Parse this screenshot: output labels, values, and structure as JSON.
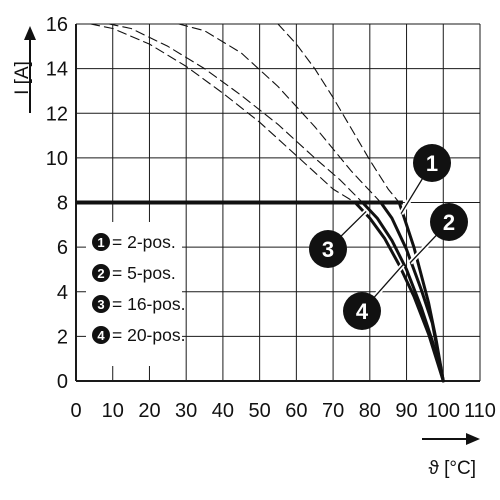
{
  "chart_data": {
    "type": "line",
    "xlabel": "ϑ [°C]",
    "ylabel": "I [A]",
    "xlim": [
      0,
      110
    ],
    "ylim": [
      0,
      16
    ],
    "x_ticks": [
      0,
      10,
      20,
      30,
      40,
      50,
      60,
      70,
      80,
      90,
      100,
      110
    ],
    "y_ticks": [
      0,
      2,
      4,
      6,
      8,
      10,
      12,
      14,
      16
    ],
    "grid": true,
    "legend_position": "lower-left",
    "legend": [
      {
        "badge": "1",
        "text": "= 2-pos."
      },
      {
        "badge": "2",
        "text": "= 5-pos."
      },
      {
        "badge": "3",
        "text": "= 16-pos."
      },
      {
        "badge": "4",
        "text": "= 20-pos."
      }
    ],
    "limit_line": {
      "y": 8,
      "x": [
        0,
        89
      ]
    },
    "series": [
      {
        "badge": "1",
        "style": "solid",
        "x": [
          88,
          92,
          96,
          98,
          100
        ],
        "y": [
          8,
          6,
          3.5,
          1.9,
          0
        ]
      },
      {
        "badge": "1",
        "style": "dashed",
        "x": [
          55,
          60,
          65,
          70,
          75,
          80,
          85,
          88
        ],
        "y": [
          16,
          15.1,
          14.0,
          12.7,
          11.3,
          9.9,
          8.6,
          8
        ]
      },
      {
        "badge": "2",
        "style": "solid",
        "x": [
          83,
          86,
          90,
          94,
          97,
          100
        ],
        "y": [
          8,
          7.3,
          5.9,
          4.1,
          2.6,
          0
        ]
      },
      {
        "badge": "2",
        "style": "dashed",
        "x": [
          28,
          35,
          45,
          55,
          65,
          75,
          83
        ],
        "y": [
          16,
          15.7,
          14.7,
          13.2,
          11.4,
          9.4,
          8
        ]
      },
      {
        "badge": "3",
        "style": "solid",
        "x": [
          78,
          82,
          86,
          90,
          94,
          97,
          100
        ],
        "y": [
          8,
          7.3,
          6.3,
          5.0,
          3.3,
          1.8,
          0
        ]
      },
      {
        "badge": "3",
        "style": "dashed",
        "x": [
          9,
          15,
          25,
          35,
          45,
          55,
          65,
          72,
          78
        ],
        "y": [
          16,
          15.8,
          15.0,
          14.0,
          12.8,
          11.5,
          10.0,
          9.0,
          8
        ]
      },
      {
        "badge": "4",
        "style": "solid",
        "x": [
          76,
          80,
          84,
          88,
          92,
          96,
          100
        ],
        "y": [
          8,
          7.3,
          6.4,
          5.2,
          3.8,
          2.1,
          0
        ]
      },
      {
        "badge": "4",
        "style": "dashed",
        "x": [
          4,
          10,
          20,
          30,
          40,
          50,
          60,
          70,
          76
        ],
        "y": [
          16,
          15.8,
          15.1,
          14.1,
          12.9,
          11.6,
          10.1,
          8.6,
          8
        ]
      }
    ],
    "callouts": [
      {
        "badge": "1",
        "x": 88.5,
        "y": 7.5
      },
      {
        "badge": "2",
        "x": 91,
        "y": 5.3
      },
      {
        "badge": "3",
        "x": 79,
        "y": 7.6
      },
      {
        "badge": "4",
        "x": 89,
        "y": 5.2
      }
    ]
  }
}
